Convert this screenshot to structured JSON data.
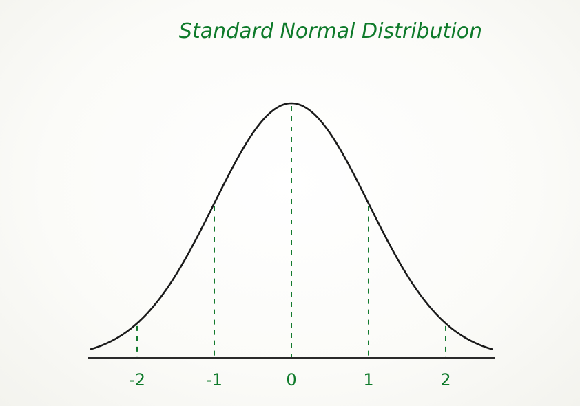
{
  "title": "Standard Normal Distribution",
  "ticks": [
    {
      "value": -2,
      "label": "-2"
    },
    {
      "value": -1,
      "label": "-1"
    },
    {
      "value": 0,
      "label": "0"
    },
    {
      "value": 1,
      "label": "1"
    },
    {
      "value": 2,
      "label": "2"
    }
  ],
  "curve": {
    "mean": 0,
    "sd": 1,
    "x_range": [
      -2.6,
      2.6
    ]
  },
  "colors": {
    "text": "#0e7a2a",
    "guide": "#137a2e",
    "curve": "#1a1a1a",
    "axis": "#2a2a2a"
  }
}
